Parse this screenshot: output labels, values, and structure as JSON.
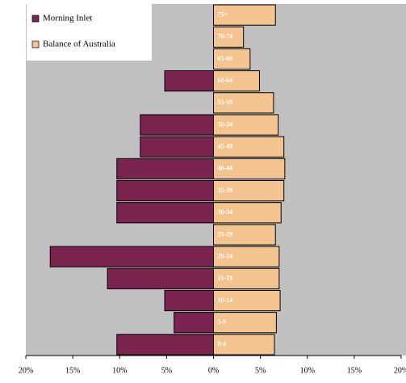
{
  "chart_data": {
    "type": "pyramid",
    "categories": [
      "0-4",
      "5-9",
      "10-14",
      "15-19",
      "20-24",
      "25-29",
      "30-34",
      "35-39",
      "40-44",
      "45-49",
      "50-54",
      "55-59",
      "60-64",
      "65-69",
      "70-74",
      "75+"
    ],
    "series": [
      {
        "name": "Morning Inlet",
        "color": "#7b2450",
        "values": [
          -10.3,
          -4.2,
          -5.2,
          -11.3,
          -17.4,
          0,
          -10.3,
          -10.3,
          -10.3,
          -7.8,
          -7.8,
          0,
          -5.2,
          0,
          0,
          0
        ]
      },
      {
        "name": "Balance of Australia",
        "color": "#f3c48f",
        "values": [
          6.5,
          6.7,
          7.1,
          7.0,
          7.0,
          6.6,
          7.2,
          7.5,
          7.6,
          7.5,
          6.9,
          6.4,
          4.9,
          3.9,
          3.2,
          6.6
        ]
      }
    ],
    "xlim": [
      -20,
      20
    ],
    "xticks": [
      {
        "value": -20,
        "label": "20%"
      },
      {
        "value": -15,
        "label": "15%"
      },
      {
        "value": -10,
        "label": "10%"
      },
      {
        "value": -5,
        "label": "5%"
      },
      {
        "value": 0,
        "label": "0%"
      },
      {
        "value": 5,
        "label": "5%"
      },
      {
        "value": 10,
        "label": "10%"
      },
      {
        "value": 15,
        "label": "15%"
      },
      {
        "value": 20,
        "label": "20%"
      }
    ],
    "legend": "top-left"
  }
}
